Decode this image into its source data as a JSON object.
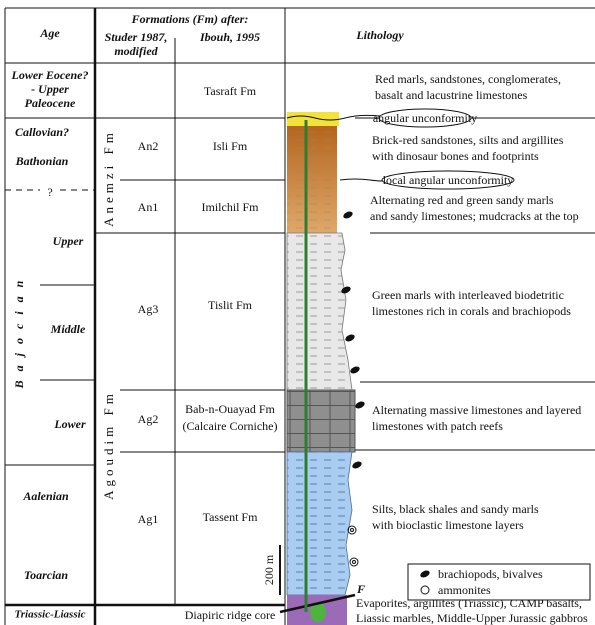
{
  "header": {
    "age": "Age",
    "formations": "Formations (Fm) after:",
    "studer": [
      "Studer 1987,",
      "modified"
    ],
    "ibouh": "Ibouh, 1995",
    "lithology": "Lithology"
  },
  "ages": {
    "eocene": [
      "Lower Eocene?",
      "- Upper",
      "Paleocene"
    ],
    "callovian": "Callovian?",
    "bathonian": "Bathonian",
    "query": "?",
    "upper": "Upper",
    "middle": "Middle",
    "lower": "Lower",
    "aalenian": "Aalenian",
    "toarcian": "Toarcian",
    "triassic": "Triassic-Liassic",
    "bajocian": "Bajocian"
  },
  "groups": [
    "Anemzi Fm",
    "Agoudim Fm"
  ],
  "members": [
    "An2",
    "An1",
    "Ag3",
    "Ag2",
    "Ag1"
  ],
  "formations": [
    "Tasraft Fm",
    "Isli Fm",
    "Imilchil Fm",
    "Tislit Fm",
    "Bab-n-Ouayad Fm",
    "(Calcaire Corniche)",
    "Tassent Fm",
    "Diapiric ridge core"
  ],
  "descriptions": [
    [
      "Red marls, sandstones, conglomerates,",
      "basalt and lacustrine limestones"
    ],
    [
      "Brick-red sandstones, silts and argillites",
      "with dinosaur bones and footprints"
    ],
    [
      "Alternating red and green sandy marls",
      "and sandy limestones; mudcracks at the top"
    ],
    [
      "Green marls with interleaved biodetritic",
      "limestones rich in corals and brachiopods"
    ],
    [
      "Alternating massive limestones and layered",
      "limestones with patch reefs"
    ],
    [
      "Silts, black shales and sandy marls",
      "with bioclastic limestone layers"
    ],
    [
      "Evaporites, argillites (Triassic), CAMP basalts,",
      "Liassic marbles, Middle-Upper Jurassic gabbros"
    ]
  ],
  "unconformities": [
    "angular unconformity",
    "local angular unconformity"
  ],
  "scale": "200 m",
  "fault": "F",
  "legend": [
    "brachiopods, bivalves",
    "ammonites"
  ]
}
